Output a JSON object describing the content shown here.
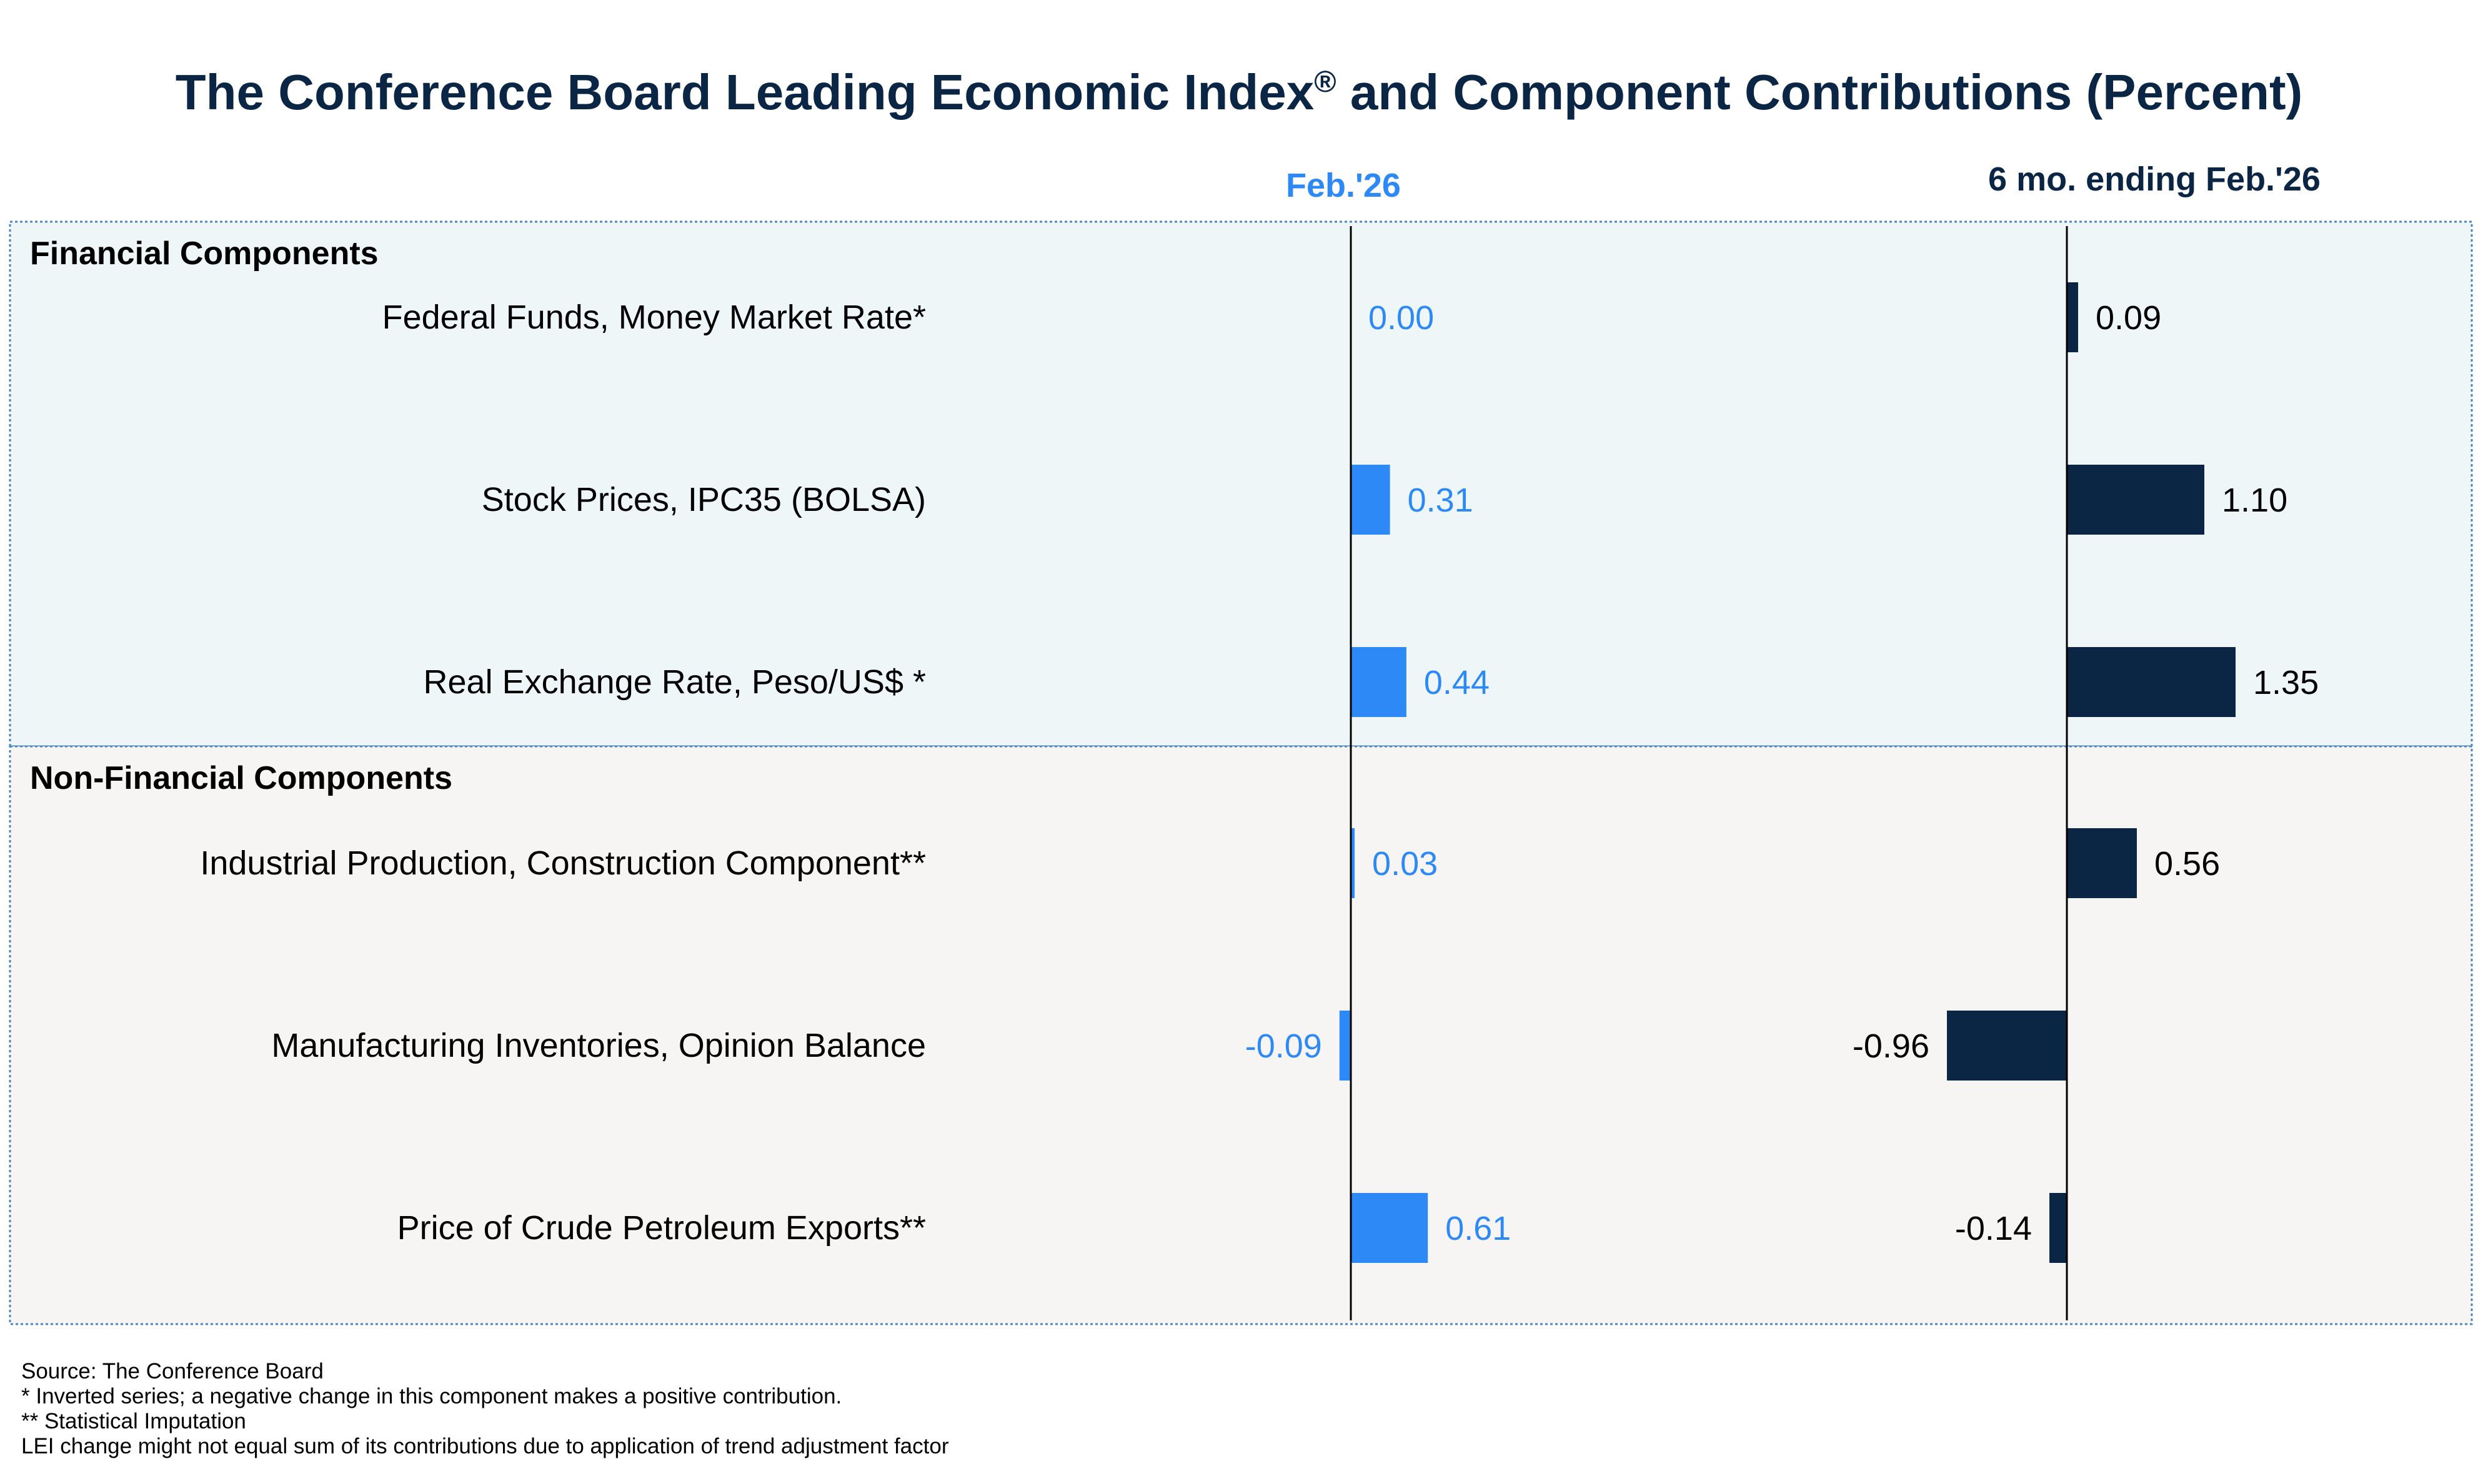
{
  "colors": {
    "title": "#0b2545",
    "feb_bar": "#2d89f5",
    "feb_text": "#2d89f5",
    "six_bar": "#0b2545",
    "six_text": "#000000",
    "financial_bg": "#eef6f8",
    "nonfinancial_bg": "#f6f5f3",
    "panel_border": "#4a86c6",
    "axis": "#000000"
  },
  "chart_data": {
    "type": "bar",
    "orientation": "horizontal",
    "title": {
      "main": "The Conference Board Leading Economic Index",
      "reg": "®",
      "rest": " and Component Contributions (Percent)"
    },
    "series": [
      {
        "key": "feb",
        "name": "Feb.'26",
        "values": [
          0.0,
          0.31,
          0.44,
          0.03,
          -0.09,
          0.61
        ],
        "labels": [
          "0.00",
          "0.31",
          "0.44",
          "0.03",
          "-0.09",
          "0.61"
        ]
      },
      {
        "key": "six",
        "name": "6 mo. ending Feb.'26",
        "values": [
          0.09,
          1.1,
          1.35,
          0.56,
          -0.96,
          -0.14
        ],
        "labels": [
          "0.09",
          "1.10",
          "1.35",
          "0.56",
          "-0.96",
          "-0.14"
        ]
      }
    ],
    "groups": [
      {
        "label": "Financial Components",
        "rows": [
          0,
          1,
          2
        ]
      },
      {
        "label": "Non-Financial Components",
        "rows": [
          3,
          4,
          5
        ]
      }
    ],
    "categories": [
      "Federal Funds, Money Market Rate*",
      "Stock Prices, IPC35 (BOLSA)",
      "Real Exchange Rate, Peso/US$ *",
      "Industrial Production, Construction Component**",
      "Manufacturing Inventories, Opinion Balance",
      "Price of Crude Petroleum Exports**"
    ]
  },
  "notes": [
    "Source: The Conference Board",
    "*  Inverted series; a negative change in this component makes a positive contribution.",
    "** Statistical Imputation",
    "LEI change might not equal sum of its contributions due to application of trend adjustment factor"
  ]
}
